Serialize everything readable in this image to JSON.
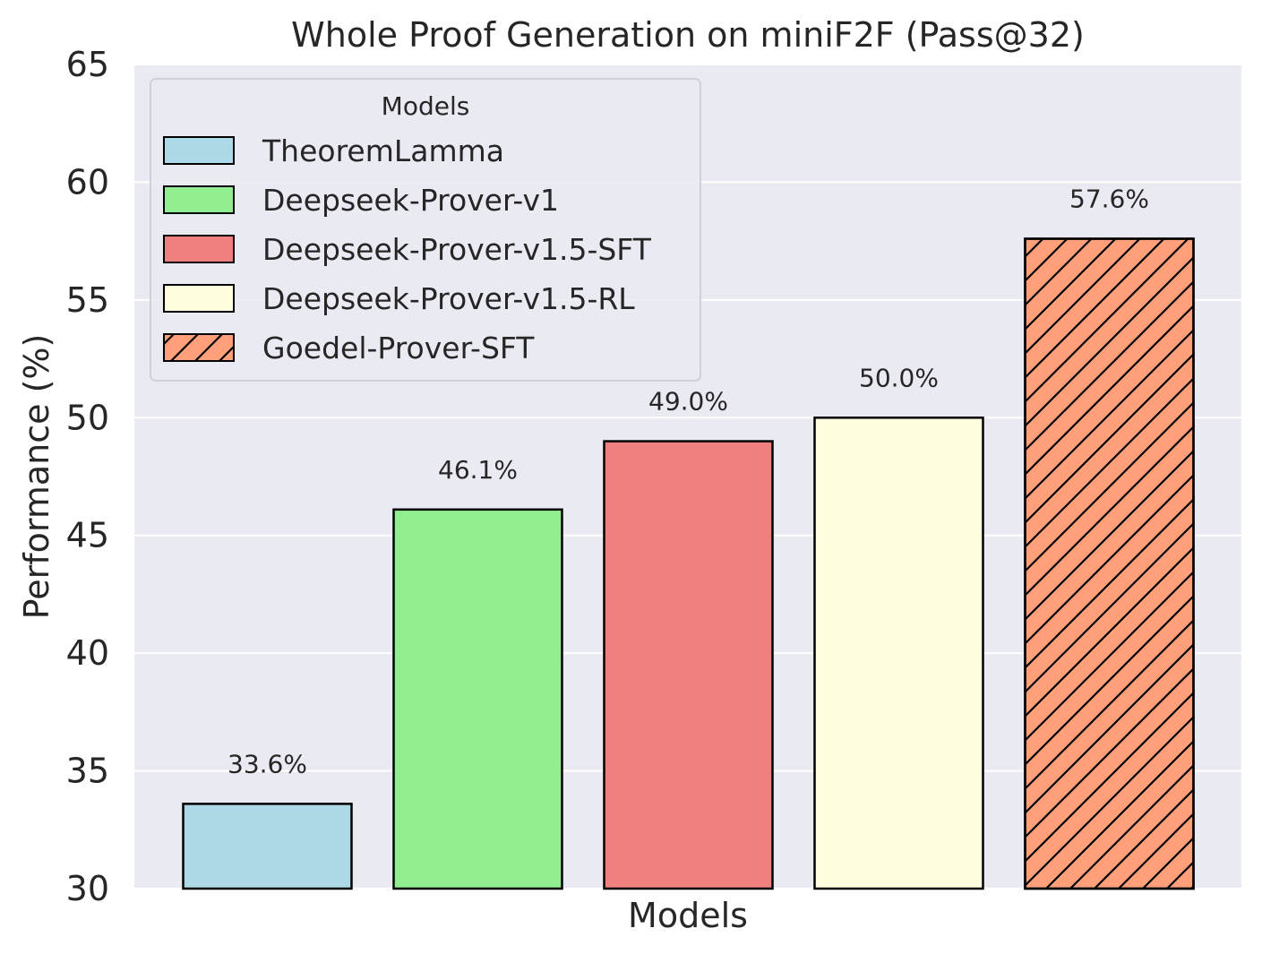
{
  "chart_data": {
    "type": "bar",
    "title": "Whole Proof Generation on miniF2F (Pass@32)",
    "xlabel": "Models",
    "ylabel": "Performance (%)",
    "ylim": [
      30,
      65
    ],
    "yticks": [
      30,
      35,
      40,
      45,
      50,
      55,
      60,
      65
    ],
    "grid": true,
    "legend": {
      "title": "Models",
      "placement": "top-left"
    },
    "categories": [
      "TheoremLamma",
      "Deepseek-Prover-v1",
      "Deepseek-Prover-v1.5-SFT",
      "Deepseek-Prover-v1.5-RL",
      "Goedel-Prover-SFT"
    ],
    "values": [
      33.6,
      46.1,
      49.0,
      50.0,
      57.6
    ],
    "value_labels": [
      "33.6%",
      "46.1%",
      "49.0%",
      "50.0%",
      "57.6%"
    ],
    "colors": [
      "#add8e6",
      "#90ee90",
      "#f08080",
      "#ffffe0",
      "#ffa07a"
    ],
    "hatched": [
      false,
      false,
      false,
      false,
      true
    ],
    "background": "#eaeaf2",
    "edge_color": "#000000"
  }
}
